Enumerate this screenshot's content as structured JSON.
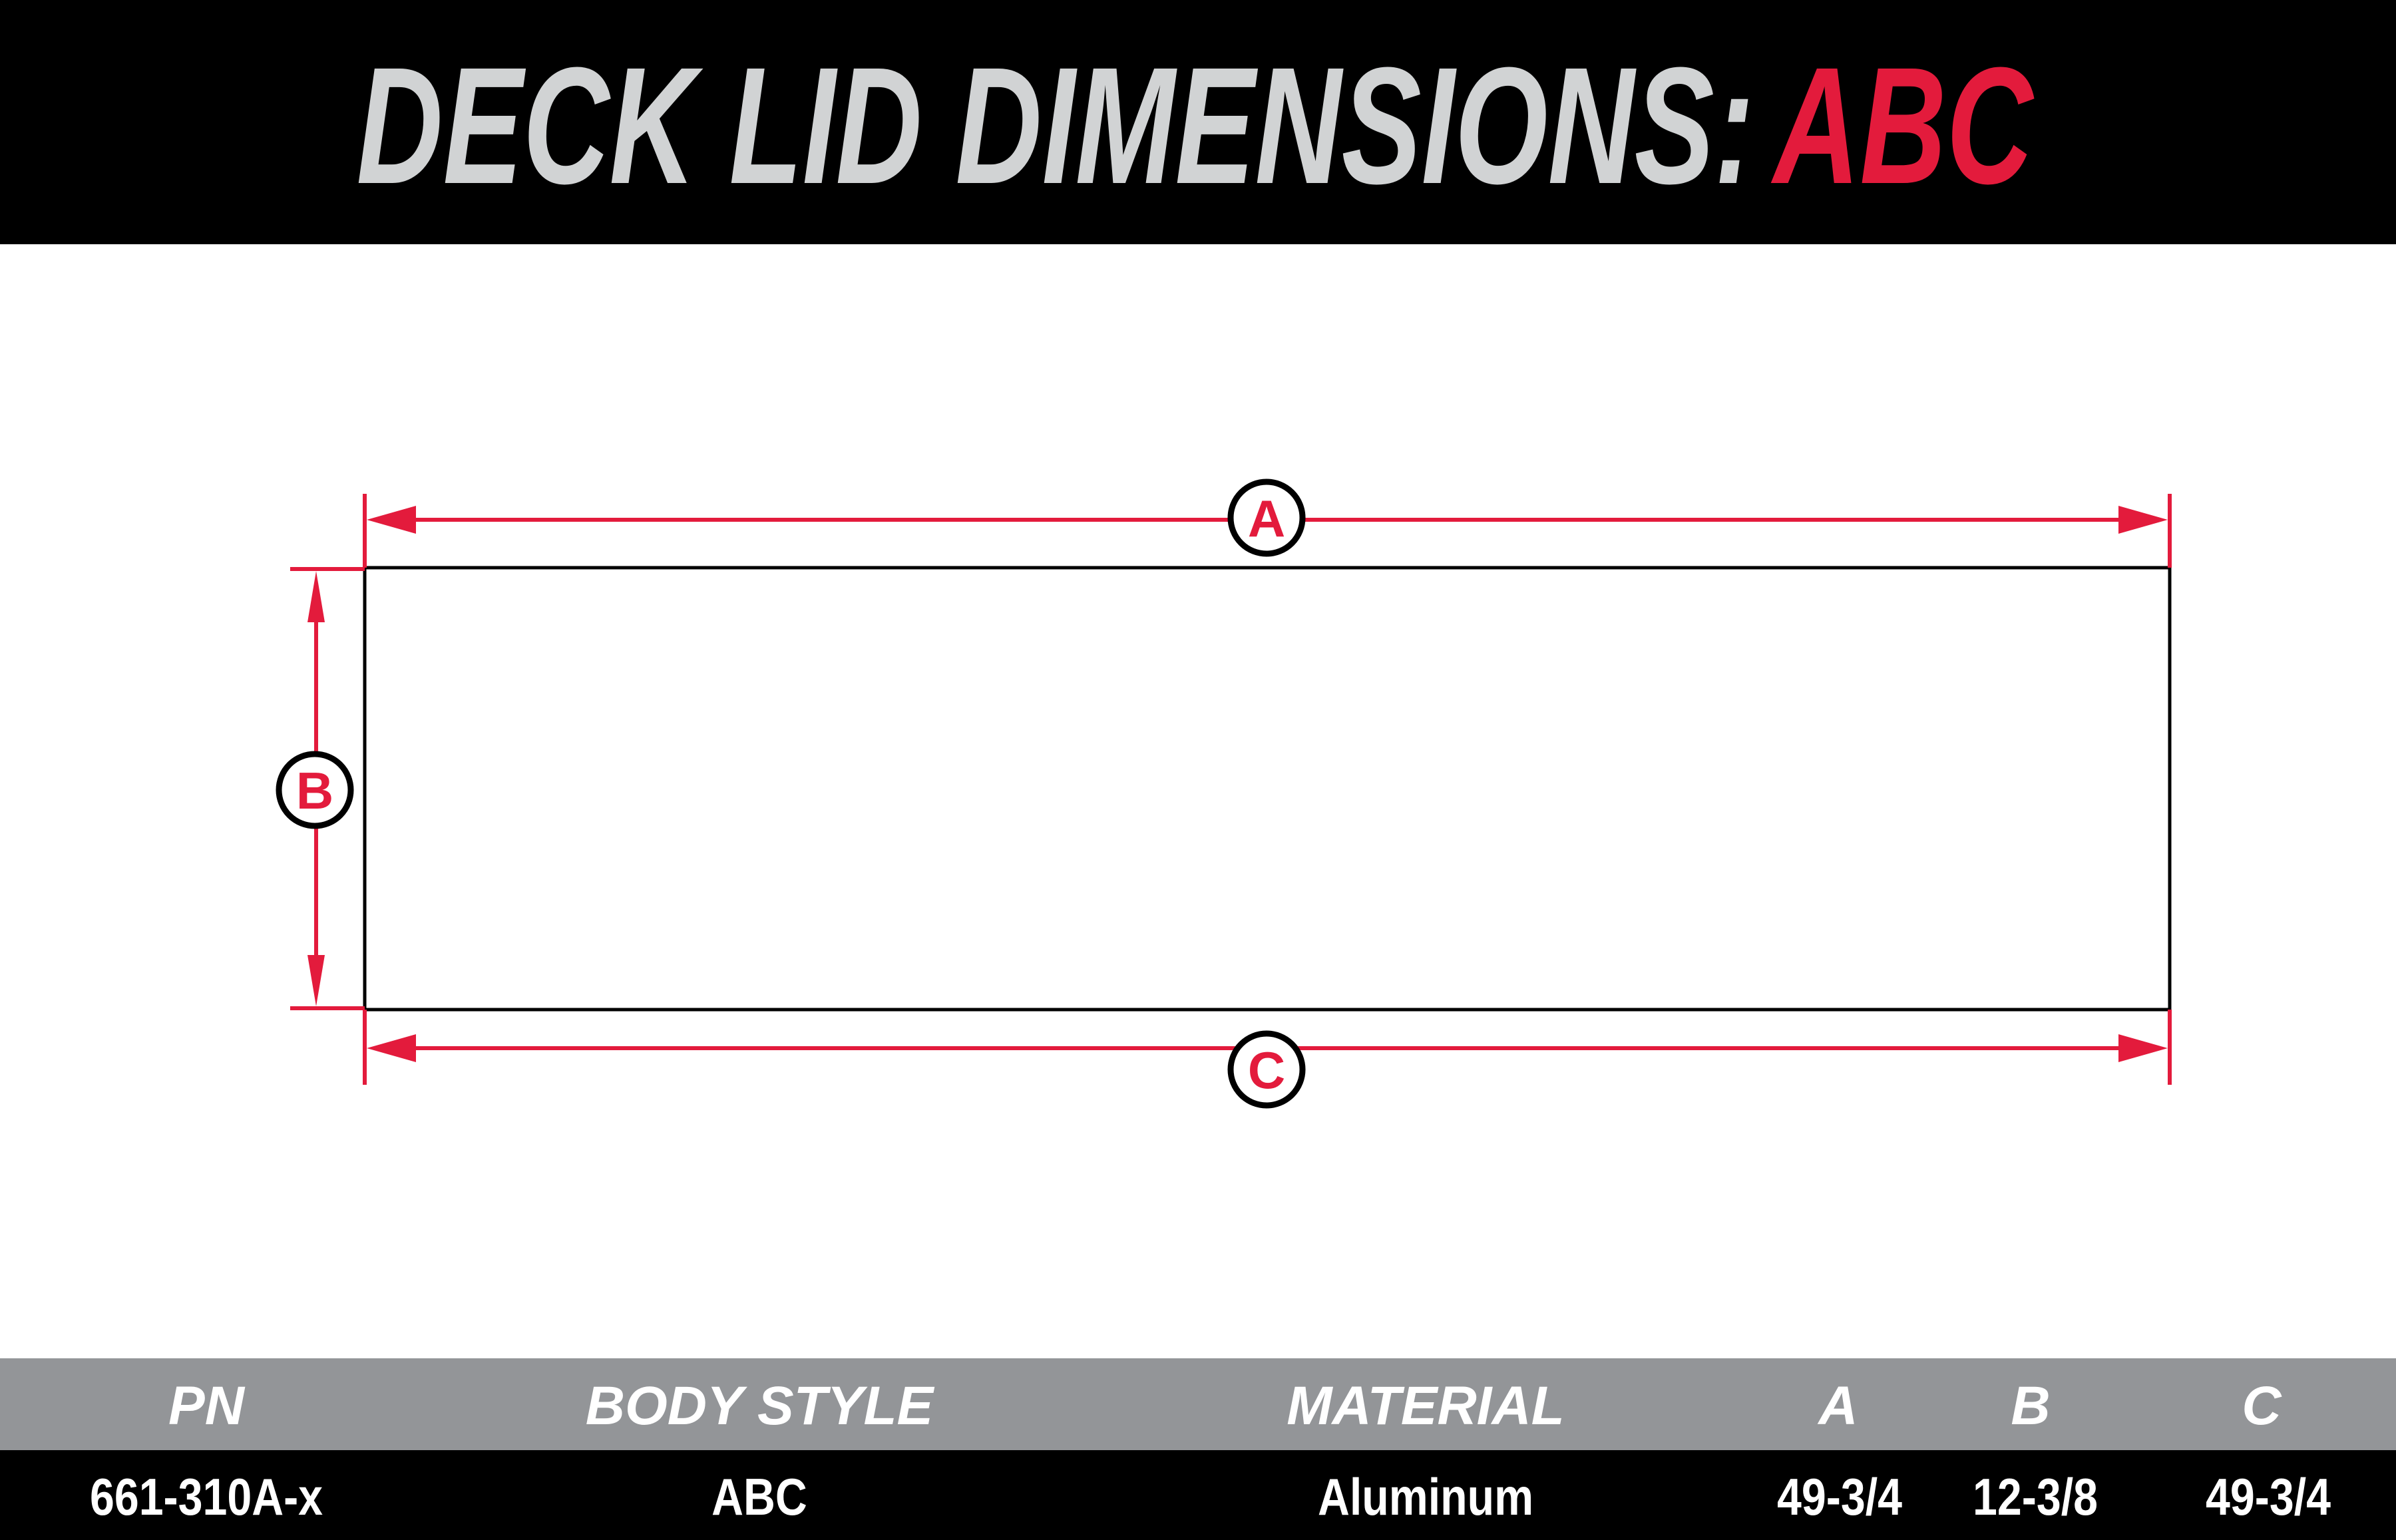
{
  "title": {
    "prefix": "DECK LID DIMENSIONS:",
    "highlight": "ABC"
  },
  "colors": {
    "accent": "#e31b3c",
    "title_gray": "#d1d3d4",
    "header_bar": "#939598",
    "black": "#000000"
  },
  "diagram": {
    "labels": {
      "a": "A",
      "b": "B",
      "c": "C"
    }
  },
  "table": {
    "headers": [
      "PN",
      "BODY STYLE",
      "MATERIAL",
      "A",
      "B",
      "C"
    ],
    "rows": [
      [
        "661-310A-x",
        "ABC",
        "Aluminum",
        "49-3/4",
        "12-3/8",
        "49-3/4"
      ]
    ]
  }
}
